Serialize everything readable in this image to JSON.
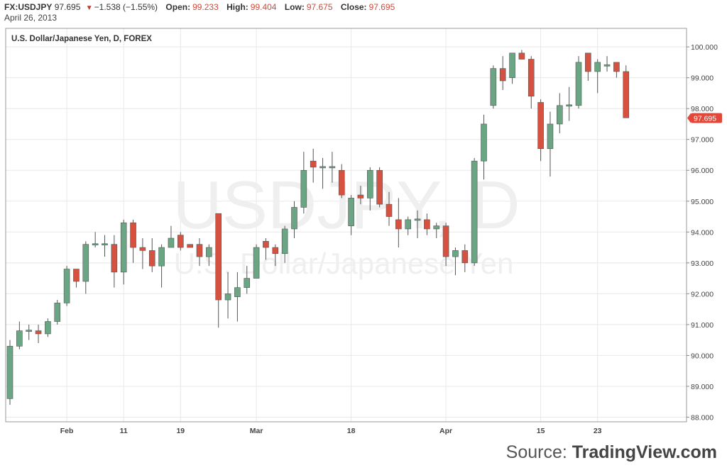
{
  "header": {
    "symbol": "FX:USDJPY",
    "last": "97.695",
    "change": "▼",
    "change_value": "−1.538 (−1.55%)",
    "open_label": "Open:",
    "open": "99.233",
    "high_label": "High:",
    "high": "99.404",
    "low_label": "Low:",
    "low": "97.675",
    "close_label": "Close:",
    "close": "97.695",
    "date": "April 26, 2013"
  },
  "footer": {
    "source_prefix": "Source: ",
    "source_name": "TradingView.com"
  },
  "colors": {
    "up": "#6aa584",
    "down": "#d6513f",
    "grid": "#e8e8e8",
    "border": "#9a9a9a",
    "price_badge": "#e2483a"
  },
  "chart_data": {
    "type": "candlestick",
    "title": "U.S. Dollar/Japanese Yen, D, FOREX",
    "watermark_main": "USDJPY, D",
    "watermark_sub": "U.S. Dollar/Japanese Yen",
    "last_price_label": "97.695",
    "ylim": [
      87.85,
      100.6
    ],
    "y_ticks": [
      "88.000",
      "89.000",
      "90.000",
      "91.000",
      "92.000",
      "93.000",
      "94.000",
      "95.000",
      "96.000",
      "97.000",
      "98.000",
      "99.000",
      "100.000"
    ],
    "x_ticks": [
      {
        "index": 6,
        "label": "Feb"
      },
      {
        "index": 12,
        "label": "11"
      },
      {
        "index": 18,
        "label": "19"
      },
      {
        "index": 26,
        "label": "Mar"
      },
      {
        "index": 36,
        "label": "18"
      },
      {
        "index": 46,
        "label": "Apr"
      },
      {
        "index": 56,
        "label": "15"
      },
      {
        "index": 62,
        "label": "23"
      }
    ],
    "candles": [
      {
        "o": 88.6,
        "h": 90.5,
        "l": 88.4,
        "c": 90.3
      },
      {
        "o": 90.3,
        "h": 91.1,
        "l": 90.2,
        "c": 90.8
      },
      {
        "o": 90.8,
        "h": 91.0,
        "l": 90.5,
        "c": 90.8
      },
      {
        "o": 90.8,
        "h": 91.0,
        "l": 90.4,
        "c": 90.7
      },
      {
        "o": 90.7,
        "h": 91.2,
        "l": 90.6,
        "c": 91.1
      },
      {
        "o": 91.1,
        "h": 91.8,
        "l": 91.0,
        "c": 91.7
      },
      {
        "o": 91.7,
        "h": 92.9,
        "l": 91.6,
        "c": 92.8
      },
      {
        "o": 92.8,
        "h": 92.8,
        "l": 92.2,
        "c": 92.4
      },
      {
        "o": 92.4,
        "h": 93.7,
        "l": 92.0,
        "c": 93.6
      },
      {
        "o": 93.6,
        "h": 94.0,
        "l": 93.5,
        "c": 93.6
      },
      {
        "o": 93.6,
        "h": 93.9,
        "l": 93.2,
        "c": 93.6
      },
      {
        "o": 93.6,
        "h": 93.9,
        "l": 92.2,
        "c": 92.7
      },
      {
        "o": 92.7,
        "h": 94.4,
        "l": 92.3,
        "c": 94.3
      },
      {
        "o": 94.3,
        "h": 94.4,
        "l": 93.0,
        "c": 93.5
      },
      {
        "o": 93.5,
        "h": 93.8,
        "l": 92.8,
        "c": 93.4
      },
      {
        "o": 93.4,
        "h": 93.8,
        "l": 92.7,
        "c": 92.9
      },
      {
        "o": 92.9,
        "h": 93.6,
        "l": 92.2,
        "c": 93.5
      },
      {
        "o": 93.5,
        "h": 94.2,
        "l": 93.5,
        "c": 93.8
      },
      {
        "o": 93.9,
        "h": 94.0,
        "l": 93.4,
        "c": 93.5
      },
      {
        "o": 93.6,
        "h": 93.6,
        "l": 93.5,
        "c": 93.5
      },
      {
        "o": 93.6,
        "h": 93.8,
        "l": 92.9,
        "c": 93.2
      },
      {
        "o": 93.2,
        "h": 93.6,
        "l": 92.9,
        "c": 93.5
      },
      {
        "o": 94.6,
        "h": 94.6,
        "l": 90.9,
        "c": 91.8
      },
      {
        "o": 91.8,
        "h": 92.7,
        "l": 91.2,
        "c": 92.0
      },
      {
        "o": 91.9,
        "h": 92.7,
        "l": 91.1,
        "c": 92.2
      },
      {
        "o": 92.2,
        "h": 92.9,
        "l": 92.0,
        "c": 92.5
      },
      {
        "o": 92.5,
        "h": 93.6,
        "l": 92.5,
        "c": 93.5
      },
      {
        "o": 93.7,
        "h": 93.8,
        "l": 93.1,
        "c": 93.5
      },
      {
        "o": 93.5,
        "h": 93.6,
        "l": 92.9,
        "c": 93.3
      },
      {
        "o": 93.3,
        "h": 94.2,
        "l": 93.0,
        "c": 94.1
      },
      {
        "o": 94.1,
        "h": 95.0,
        "l": 93.8,
        "c": 94.8
      },
      {
        "o": 94.8,
        "h": 96.6,
        "l": 94.6,
        "c": 96.0
      },
      {
        "o": 96.3,
        "h": 96.7,
        "l": 95.6,
        "c": 96.1
      },
      {
        "o": 96.1,
        "h": 96.4,
        "l": 95.4,
        "c": 96.1
      },
      {
        "o": 96.1,
        "h": 96.6,
        "l": 95.6,
        "c": 96.1
      },
      {
        "o": 96.0,
        "h": 96.2,
        "l": 95.1,
        "c": 95.2
      },
      {
        "o": 94.2,
        "h": 95.2,
        "l": 93.9,
        "c": 95.1
      },
      {
        "o": 95.2,
        "h": 95.5,
        "l": 94.9,
        "c": 95.1
      },
      {
        "o": 95.1,
        "h": 96.1,
        "l": 94.7,
        "c": 96.0
      },
      {
        "o": 96.0,
        "h": 96.1,
        "l": 94.8,
        "c": 94.9
      },
      {
        "o": 94.9,
        "h": 95.3,
        "l": 94.2,
        "c": 94.5
      },
      {
        "o": 94.4,
        "h": 95.1,
        "l": 93.5,
        "c": 94.1
      },
      {
        "o": 94.1,
        "h": 94.5,
        "l": 93.9,
        "c": 94.4
      },
      {
        "o": 94.4,
        "h": 94.7,
        "l": 93.8,
        "c": 94.4
      },
      {
        "o": 94.4,
        "h": 94.6,
        "l": 93.9,
        "c": 94.1
      },
      {
        "o": 94.1,
        "h": 94.3,
        "l": 93.8,
        "c": 94.2
      },
      {
        "o": 94.2,
        "h": 94.3,
        "l": 92.9,
        "c": 93.2
      },
      {
        "o": 93.2,
        "h": 93.5,
        "l": 92.6,
        "c": 93.4
      },
      {
        "o": 93.4,
        "h": 93.6,
        "l": 92.7,
        "c": 93.0
      },
      {
        "o": 93.0,
        "h": 96.4,
        "l": 92.9,
        "c": 96.3
      },
      {
        "o": 96.3,
        "h": 97.8,
        "l": 95.7,
        "c": 97.5
      },
      {
        "o": 98.1,
        "h": 99.4,
        "l": 98.0,
        "c": 99.3
      },
      {
        "o": 99.3,
        "h": 99.7,
        "l": 98.6,
        "c": 98.9
      },
      {
        "o": 99.0,
        "h": 99.8,
        "l": 98.8,
        "c": 99.8
      },
      {
        "o": 99.8,
        "h": 99.9,
        "l": 99.6,
        "c": 99.6
      },
      {
        "o": 99.6,
        "h": 99.7,
        "l": 98.0,
        "c": 98.4
      },
      {
        "o": 98.2,
        "h": 98.3,
        "l": 96.3,
        "c": 96.7
      },
      {
        "o": 96.7,
        "h": 97.9,
        "l": 95.8,
        "c": 97.5
      },
      {
        "o": 97.5,
        "h": 98.5,
        "l": 97.2,
        "c": 98.1
      },
      {
        "o": 98.1,
        "h": 98.7,
        "l": 97.6,
        "c": 98.1
      },
      {
        "o": 98.1,
        "h": 99.7,
        "l": 98.0,
        "c": 99.5
      },
      {
        "o": 99.8,
        "h": 99.8,
        "l": 98.9,
        "c": 99.2
      },
      {
        "o": 99.2,
        "h": 99.6,
        "l": 98.5,
        "c": 99.5
      },
      {
        "o": 99.4,
        "h": 99.7,
        "l": 99.2,
        "c": 99.4
      },
      {
        "o": 99.5,
        "h": 99.5,
        "l": 99.0,
        "c": 99.2
      },
      {
        "o": 99.2,
        "h": 99.4,
        "l": 97.7,
        "c": 97.7
      }
    ]
  }
}
